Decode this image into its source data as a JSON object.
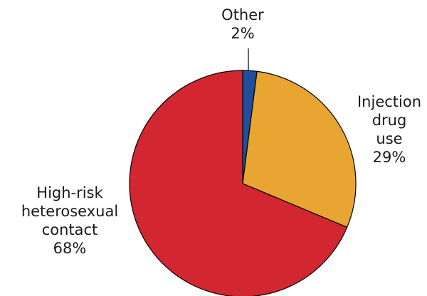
{
  "chart_data": {
    "type": "pie",
    "title": "",
    "start_angle_deg": 0,
    "direction": "clockwise",
    "slices": [
      {
        "name": "Other",
        "value": 2,
        "value_label": "2%",
        "color": "#1f4e9c",
        "label_lines": [
          "Other",
          "2%"
        ]
      },
      {
        "name": "Injection drug use",
        "value": 29,
        "value_label": "29%",
        "color": "#e8a531",
        "label_lines": [
          "Injection",
          "drug",
          "use",
          "29%"
        ]
      },
      {
        "name": "High-risk heterosexual contact",
        "value": 68,
        "value_label": "68%",
        "color": "#d22630",
        "label_lines": [
          "High-risk",
          "heterosexual",
          "contact",
          "68%"
        ]
      }
    ]
  }
}
